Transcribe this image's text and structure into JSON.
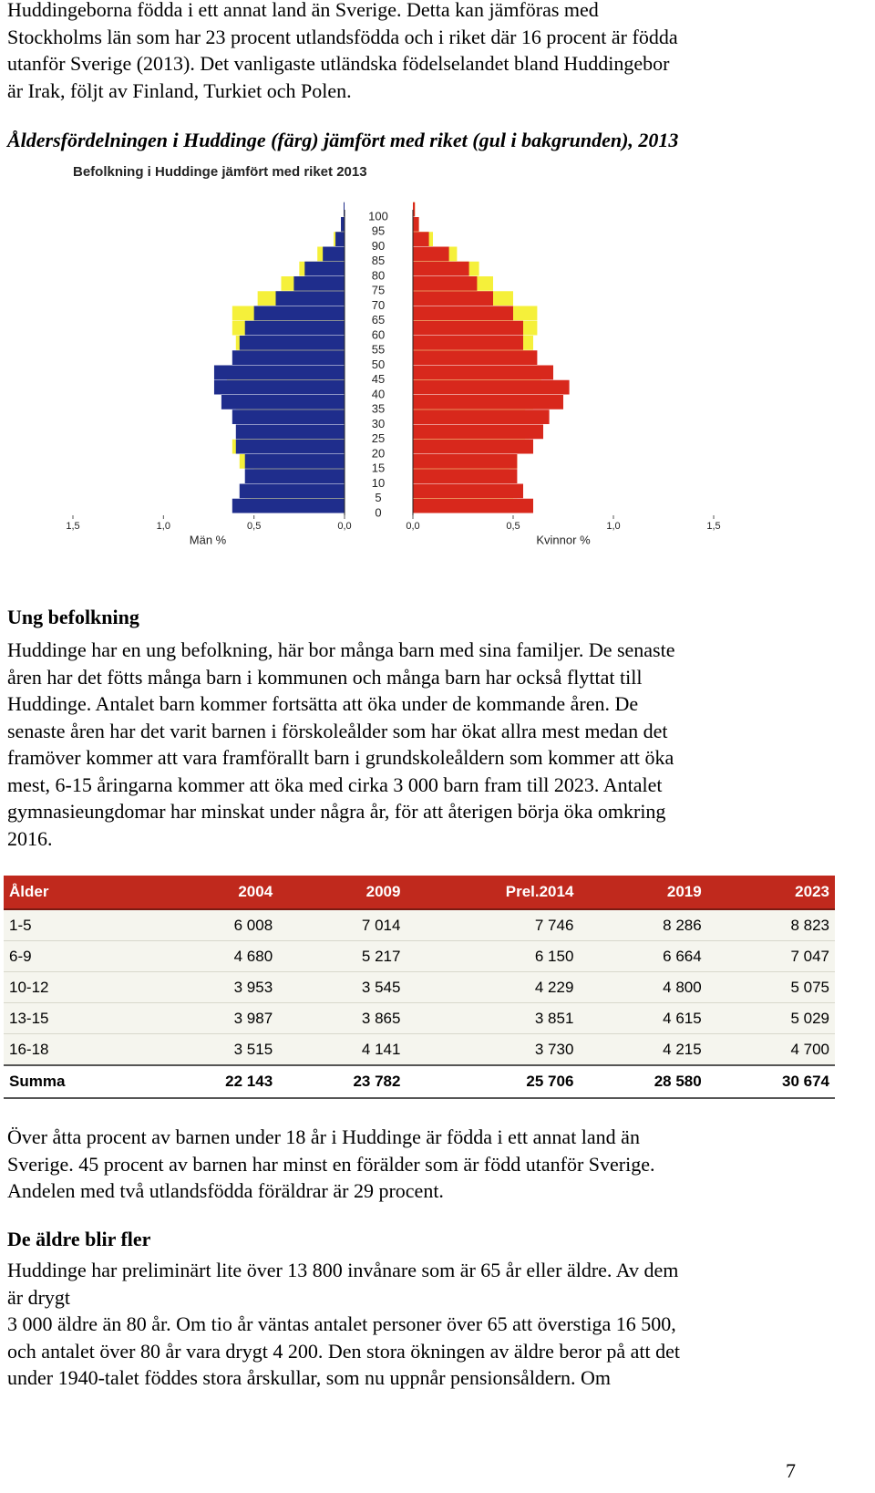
{
  "intro": [
    "Huddingeborna födda i ett annat land än Sverige. Detta kan jämföras med",
    "Stockholms län som har 23 procent utlandsfödda och i riket där 16 procent är födda",
    "utanför Sverige (2013). Det vanligaste utländska födelselandet bland Huddingebor",
    "är Irak, följt av Finland, Turkiet och Polen."
  ],
  "figure_caption": "Åldersfördelningen i Huddinge (färg) jämfört med riket (gul i bakgrunden), 2013",
  "chart_data": {
    "type": "pyramid",
    "title": "Befolkning i Huddinge jämfört med riket 2013",
    "categories": [
      "0",
      "5",
      "10",
      "15",
      "20",
      "25",
      "30",
      "35",
      "40",
      "45",
      "50",
      "55",
      "60",
      "65",
      "70",
      "75",
      "80",
      "85",
      "90",
      "95",
      "100"
    ],
    "xlim": [
      0,
      1.5
    ],
    "xticks": [
      {
        "value": 0,
        "label": "0,0"
      },
      {
        "value": 0.5,
        "label": "0,5"
      },
      {
        "value": 1,
        "label": "1,0"
      },
      {
        "value": 1.5,
        "label": "1,5"
      }
    ],
    "xlabel_left": "Män %",
    "xlabel_right": "Kvinnor %",
    "series": [
      {
        "side": "left",
        "color": "#f5f03a",
        "values": [
          0.55,
          0.52,
          0.5,
          0.58,
          0.62,
          0.58,
          0.58,
          0.6,
          0.65,
          0.65,
          0.6,
          0.6,
          0.62,
          0.62,
          0.48,
          0.35,
          0.25,
          0.15,
          0.06,
          0.02,
          0.005
        ]
      },
      {
        "side": "left",
        "color": "#1f2d8c",
        "values": [
          0.62,
          0.58,
          0.55,
          0.55,
          0.6,
          0.6,
          0.62,
          0.68,
          0.72,
          0.72,
          0.62,
          0.58,
          0.55,
          0.5,
          0.38,
          0.28,
          0.22,
          0.12,
          0.05,
          0.02,
          0.005
        ]
      },
      {
        "side": "right",
        "color": "#f5f03a",
        "values": [
          0.52,
          0.5,
          0.48,
          0.52,
          0.58,
          0.56,
          0.56,
          0.6,
          0.64,
          0.64,
          0.6,
          0.6,
          0.62,
          0.62,
          0.5,
          0.4,
          0.33,
          0.22,
          0.1,
          0.03,
          0.01
        ]
      },
      {
        "side": "right",
        "color": "#d8281c",
        "values": [
          0.6,
          0.55,
          0.52,
          0.52,
          0.6,
          0.65,
          0.68,
          0.75,
          0.78,
          0.7,
          0.62,
          0.55,
          0.55,
          0.5,
          0.4,
          0.32,
          0.28,
          0.18,
          0.08,
          0.03,
          0.01
        ]
      }
    ]
  },
  "section1": {
    "heading": "Ung befolkning",
    "lines": [
      "Huddinge har en ung befolkning, här bor många barn med sina familjer. De senaste",
      "åren har det fötts många barn i kommunen och många barn har också flyttat till",
      "Huddinge. Antalet barn kommer fortsätta att öka under de kommande åren. De",
      "senaste åren har det varit barnen i förskoleålder som har ökat allra mest medan det",
      "framöver kommer att vara framförallt barn i grundskoleåldern som kommer att öka",
      "mest, 6-15 åringarna kommer att öka med cirka 3 000 barn fram till 2023. Antalet",
      "gymnasieungdomar har minskat under några år, för att återigen börja öka omkring",
      "2016."
    ]
  },
  "table": {
    "header": [
      "Ålder",
      "2004",
      "2009",
      "Prel.2014",
      "2019",
      "2023"
    ],
    "rows": [
      [
        "1-5",
        "6 008",
        "7 014",
        "7 746",
        "8 286",
        "8 823"
      ],
      [
        "6-9",
        "4 680",
        "5 217",
        "6 150",
        "6 664",
        "7 047"
      ],
      [
        "10-12",
        "3 953",
        "3 545",
        "4 229",
        "4 800",
        "5 075"
      ],
      [
        "13-15",
        "3 987",
        "3 865",
        "3 851",
        "4 615",
        "5 029"
      ],
      [
        "16-18",
        "3 515",
        "4 141",
        "3 730",
        "4 215",
        "4 700"
      ]
    ],
    "total": [
      "Summa",
      "22 143",
      "23 782",
      "25 706",
      "28 580",
      "30 674"
    ]
  },
  "paragraph2": [
    "Över åtta procent av barnen under 18 år i Huddinge är födda i ett annat land än",
    "Sverige. 45 procent av barnen har minst en förälder som är född utanför Sverige.",
    "Andelen med två utlandsfödda föräldrar är 29 procent."
  ],
  "section2": {
    "heading": "De äldre blir fler",
    "lines": [
      "Huddinge har preliminärt lite över 13 800 invånare som är 65 år eller äldre. Av dem",
      "är drygt",
      "3 000 äldre än 80 år. Om tio år väntas antalet personer över 65 att överstiga 16 500,",
      "och antalet över 80 år vara drygt 4 200. Den stora ökningen av äldre beror på att det",
      "under 1940-talet föddes stora årskullar, som nu uppnår pensionsåldern. Om"
    ]
  },
  "page_number": "7"
}
